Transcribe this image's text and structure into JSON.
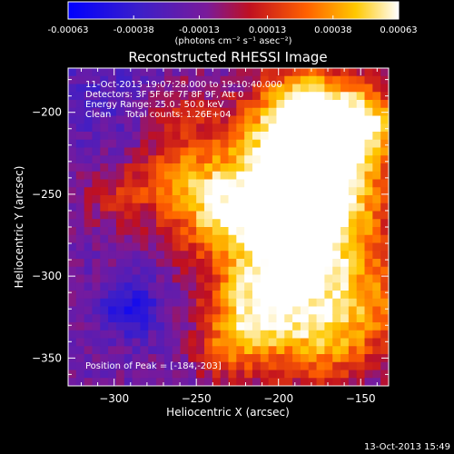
{
  "chart_data": {
    "type": "heatmap",
    "title": "Reconstructed RHESSI Image",
    "xlabel": "Heliocentric X (arcsec)",
    "ylabel": "Heliocentric Y (arcsec)",
    "xlim": [
      -328,
      -133
    ],
    "ylim": [
      -367,
      -173
    ],
    "x_ticks": [
      -300,
      -250,
      -200,
      -150
    ],
    "y_ticks": [
      -200,
      -250,
      -300,
      -350
    ],
    "colorbar": {
      "ticks": [
        "-0.00063",
        "-0.00038",
        "-0.00013",
        "0.00013",
        "0.00038",
        "0.00063"
      ],
      "range": [
        -0.00063,
        0.00063
      ],
      "unit_label": "(photons cm⁻² s⁻¹ asec⁻²)"
    },
    "annotations": [
      "11-Oct-2013 19:07:28.000 to 19:10:40.000",
      "Detectors: 3F 5F 6F 7F 8F 9F, Att 0",
      "Energy Range: 25.0 - 50.0 keV",
      "Clean     Total counts: 1.26E+04"
    ],
    "peak_text": "Position of Peak = [-184,-203]",
    "peak_position": [
      -184,
      -203
    ],
    "blue_minimum_region": [
      -290,
      -320
    ]
  },
  "timestamp": "13-Oct-2013 15:49"
}
